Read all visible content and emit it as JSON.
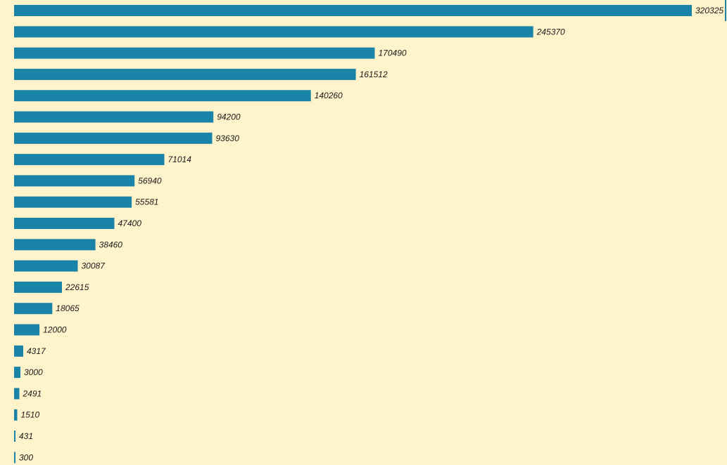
{
  "colors": {
    "background": "#fff3cc",
    "bar": "#1a83a8",
    "label": "#1a1a1a"
  },
  "chart_data": {
    "type": "bar",
    "orientation": "horizontal",
    "values": [
      320325,
      245370,
      170490,
      161512,
      140260,
      94200,
      93630,
      71014,
      56940,
      55581,
      47400,
      38460,
      30087,
      22615,
      18065,
      12000,
      4317,
      3000,
      2491,
      1510,
      431,
      300
    ],
    "data_labels": [
      "320325",
      "245370",
      "170490",
      "161512",
      "140260",
      "94200",
      "93630",
      "71014",
      "56940",
      "55581",
      "47400",
      "38460",
      "30087",
      "22615",
      "18065",
      "12000",
      "4317",
      "3000",
      "2491",
      "1510",
      "431",
      "300"
    ],
    "xlim": [
      0,
      320325
    ],
    "grid": false,
    "legend": "none"
  }
}
